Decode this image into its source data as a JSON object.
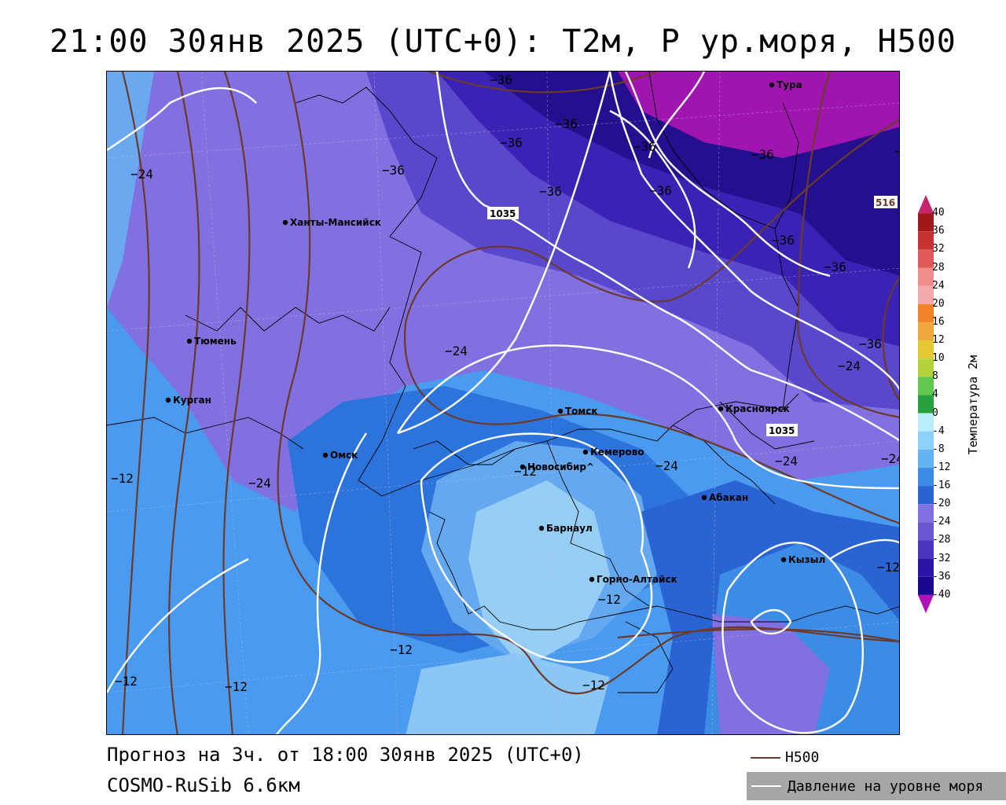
{
  "title": "21:00 30янв 2025 (UTC+0): T2м, P ур.моря, H500",
  "footer": {
    "forecast": "Прогноз на 3ч. от 18:00 30янв 2025 (UTC+0)",
    "model": "COSMO-RuSib 6.6км"
  },
  "legend": {
    "h500_label": "H500",
    "h500_color": "#6b3a2a",
    "pressure_label": "Давление на уровне моря",
    "pressure_color": "#ffffff"
  },
  "colorbar": {
    "title": "Температура 2м",
    "ticks": [
      "40",
      "36",
      "32",
      "28",
      "24",
      "20",
      "16",
      "12",
      "10",
      "8",
      "4",
      "0",
      "-4",
      "-8",
      "-12",
      "-16",
      "-20",
      "-24",
      "-28",
      "-32",
      "-36",
      "-40"
    ],
    "colors": [
      "#c8246e",
      "#a01818",
      "#c83232",
      "#e05a5a",
      "#f08c8c",
      "#f4aaaa",
      "#f0822a",
      "#f0a83c",
      "#e6c832",
      "#b4d23c",
      "#64c850",
      "#28a03c",
      "#b8eefa",
      "#8cd2f8",
      "#64b4f2",
      "#3c8ce6",
      "#2a64d2",
      "#8070e0",
      "#6a56d0",
      "#4a34c0",
      "#2c14a8",
      "#1a0890",
      "#b010b8"
    ]
  },
  "cities": [
    {
      "name": "Тура"
    },
    {
      "name": "Ханты-Мансийск"
    },
    {
      "name": "Тюмень"
    },
    {
      "name": "Курган"
    },
    {
      "name": "Омск"
    },
    {
      "name": "Новосибир^"
    },
    {
      "name": "Томск"
    },
    {
      "name": "Кемерово"
    },
    {
      "name": "Красноярск"
    },
    {
      "name": "Абакан"
    },
    {
      "name": "Барнаул"
    },
    {
      "name": "Горно-Алтайск"
    },
    {
      "name": "Кызыл"
    }
  ],
  "contour_labels": {
    "temperature": [
      "-36",
      "-36",
      "-36",
      "-36",
      "-36",
      "-36",
      "-36",
      "-36",
      "-36",
      "-36",
      "-36",
      "-36",
      "-24",
      "-24",
      "-24",
      "-24",
      "-24",
      "-24",
      "-24",
      "-12",
      "-12",
      "-12",
      "-12",
      "-12",
      "-12",
      "-12",
      "-12"
    ],
    "pressure": [
      "1035",
      "1035"
    ],
    "h500": [
      "516"
    ]
  }
}
